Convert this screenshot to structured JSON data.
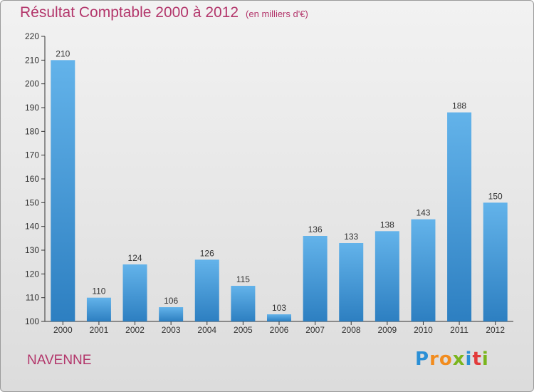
{
  "header": {
    "title": "Résultat Comptable 2000 à 2012",
    "subtitle": "(en milliers d'€)"
  },
  "footer": {
    "commune": "NAVENNE",
    "logo_letters": [
      "P",
      "r",
      "o",
      "x",
      "i",
      "t",
      "i"
    ],
    "logo_colors": [
      "#2a8fd6",
      "#f28c1e",
      "#f28c1e",
      "#7ab51d",
      "#2a8fd6",
      "#e23b3b",
      "#7ab51d"
    ]
  },
  "colors": {
    "bar_top": "#63b3ea",
    "bar_bottom": "#2d7fc1",
    "text": "#b3366b",
    "axis": "#333333"
  },
  "chart_data": {
    "type": "bar",
    "title": "Résultat Comptable 2000 à 2012",
    "subtitle": "(en milliers d'€)",
    "categories": [
      "2000",
      "2001",
      "2002",
      "2003",
      "2004",
      "2005",
      "2006",
      "2007",
      "2008",
      "2009",
      "2010",
      "2011",
      "2012"
    ],
    "values": [
      210,
      110,
      124,
      106,
      126,
      115,
      103,
      136,
      133,
      138,
      143,
      188,
      150
    ],
    "ylim": [
      100,
      220
    ],
    "yticks": [
      100,
      110,
      120,
      130,
      140,
      150,
      160,
      170,
      180,
      190,
      200,
      210,
      220
    ],
    "grid": false,
    "data_labels": true
  }
}
